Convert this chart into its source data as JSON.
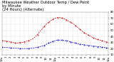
{
  "title_line1": "Milwaukee Weather Outdoor Temp / Dew Point",
  "title_line2": "by Minute",
  "title_line3": "(24 Hours) (Alternate)",
  "title_fontsize": 3.8,
  "bg_color": "#ffffff",
  "plot_bg_color": "#ffffff",
  "grid_color": "#aaaaaa",
  "temp_color": "#cc0000",
  "dew_color": "#0000cc",
  "title_color": "#000000",
  "tick_color": "#000000",
  "tick_fontsize": 2.8,
  "ylim": [
    10,
    80
  ],
  "xlim": [
    0,
    1439
  ],
  "yticks": [
    10,
    20,
    30,
    40,
    50,
    60,
    70,
    80
  ],
  "ytick_labels": [
    "10",
    "20",
    "30",
    "40",
    "50",
    "60",
    "70",
    "80"
  ],
  "xtick_positions": [
    0,
    60,
    120,
    180,
    240,
    300,
    360,
    420,
    480,
    540,
    600,
    660,
    720,
    780,
    840,
    900,
    960,
    1020,
    1080,
    1140,
    1200,
    1260,
    1320,
    1380,
    1439
  ],
  "xtick_labels": [
    "12a",
    "1",
    "2",
    "3",
    "4",
    "5",
    "6",
    "7",
    "8",
    "9",
    "10",
    "11",
    "12p",
    "1",
    "2",
    "3",
    "4",
    "5",
    "6",
    "7",
    "8",
    "9",
    "10",
    "11",
    "12a"
  ],
  "temp_data": [
    [
      0,
      33
    ],
    [
      30,
      33
    ],
    [
      60,
      32
    ],
    [
      90,
      32
    ],
    [
      120,
      31
    ],
    [
      150,
      30
    ],
    [
      180,
      29
    ],
    [
      210,
      29
    ],
    [
      240,
      30
    ],
    [
      270,
      30
    ],
    [
      300,
      31
    ],
    [
      330,
      32
    ],
    [
      360,
      33
    ],
    [
      420,
      36
    ],
    [
      480,
      43
    ],
    [
      540,
      52
    ],
    [
      570,
      56
    ],
    [
      600,
      60
    ],
    [
      630,
      63
    ],
    [
      660,
      66
    ],
    [
      690,
      68
    ],
    [
      720,
      70
    ],
    [
      750,
      71
    ],
    [
      780,
      71
    ],
    [
      810,
      70
    ],
    [
      840,
      69
    ],
    [
      870,
      67
    ],
    [
      900,
      65
    ],
    [
      930,
      63
    ],
    [
      960,
      61
    ],
    [
      990,
      58
    ],
    [
      1020,
      55
    ],
    [
      1050,
      52
    ],
    [
      1080,
      49
    ],
    [
      1110,
      46
    ],
    [
      1140,
      44
    ],
    [
      1170,
      42
    ],
    [
      1200,
      40
    ],
    [
      1230,
      38
    ],
    [
      1260,
      36
    ],
    [
      1290,
      35
    ],
    [
      1320,
      34
    ],
    [
      1350,
      33
    ],
    [
      1380,
      32
    ],
    [
      1410,
      31
    ],
    [
      1439,
      30
    ]
  ],
  "dew_data": [
    [
      0,
      22
    ],
    [
      60,
      22
    ],
    [
      120,
      21
    ],
    [
      180,
      21
    ],
    [
      240,
      20
    ],
    [
      300,
      20
    ],
    [
      360,
      20
    ],
    [
      420,
      21
    ],
    [
      480,
      22
    ],
    [
      540,
      24
    ],
    [
      570,
      25
    ],
    [
      600,
      27
    ],
    [
      630,
      29
    ],
    [
      660,
      30
    ],
    [
      690,
      32
    ],
    [
      720,
      33
    ],
    [
      750,
      34
    ],
    [
      780,
      34
    ],
    [
      810,
      34
    ],
    [
      840,
      33
    ],
    [
      870,
      33
    ],
    [
      900,
      32
    ],
    [
      930,
      31
    ],
    [
      960,
      30
    ],
    [
      990,
      29
    ],
    [
      1020,
      28
    ],
    [
      1050,
      27
    ],
    [
      1080,
      27
    ],
    [
      1110,
      26
    ],
    [
      1140,
      26
    ],
    [
      1170,
      25
    ],
    [
      1200,
      25
    ],
    [
      1230,
      24
    ],
    [
      1260,
      24
    ],
    [
      1290,
      23
    ],
    [
      1320,
      23
    ],
    [
      1350,
      22
    ],
    [
      1380,
      22
    ],
    [
      1410,
      21
    ],
    [
      1439,
      21
    ]
  ]
}
